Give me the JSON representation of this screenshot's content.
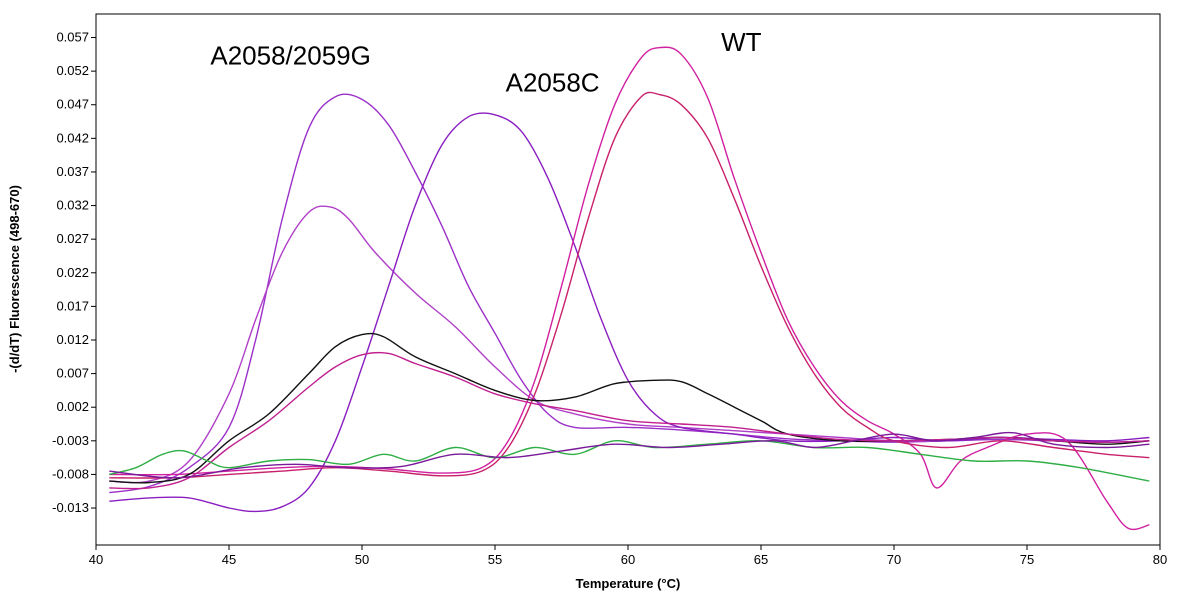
{
  "chart_data": {
    "type": "line",
    "title": "",
    "xlabel": "Temperature (°C)",
    "ylabel": "-(d/dT) Fluorescence (498-670)",
    "xlim": [
      40,
      80
    ],
    "ylim": [
      -0.0185,
      0.0605
    ],
    "x_ticks": [
      "40",
      "45",
      "50",
      "55",
      "60",
      "65",
      "70",
      "75",
      "80"
    ],
    "y_ticks": [
      "0.057",
      "0.052",
      "0.047",
      "0.042",
      "0.037",
      "0.032",
      "0.027",
      "0.022",
      "0.017",
      "0.012",
      "0.007",
      "0.002",
      "-0.003",
      "-0.008",
      "-0.013"
    ],
    "grid": false,
    "annotations": [
      {
        "text": "A2058/2059G",
        "x": 44.3,
        "y": 0.053
      },
      {
        "text": "A2058C",
        "x": 55.4,
        "y": 0.049
      },
      {
        "text": "WT",
        "x": 63.5,
        "y": 0.055
      }
    ],
    "series": [
      {
        "color": "#9b30c8",
        "points": [
          [
            40.5,
            -0.0107
          ],
          [
            42,
            -0.0098
          ],
          [
            43.5,
            -0.007
          ],
          [
            45,
            -0.001
          ],
          [
            46,
            0.012
          ],
          [
            47,
            0.03
          ],
          [
            48,
            0.0435
          ],
          [
            49,
            0.0482
          ],
          [
            50,
            0.0478
          ],
          [
            51,
            0.044
          ],
          [
            52,
            0.037
          ],
          [
            53,
            0.029
          ],
          [
            54,
            0.02
          ],
          [
            55,
            0.013
          ],
          [
            56,
            0.006
          ],
          [
            57,
            0.001
          ],
          [
            58,
            -0.001
          ],
          [
            60,
            -0.001
          ],
          [
            62,
            -0.0014
          ],
          [
            64,
            -0.002
          ],
          [
            66,
            -0.0027
          ],
          [
            68,
            -0.003
          ],
          [
            70,
            -0.0032
          ],
          [
            72,
            -0.003
          ],
          [
            74,
            -0.0028
          ],
          [
            76,
            -0.003
          ],
          [
            78,
            -0.0032
          ],
          [
            79.6,
            -0.003
          ]
        ]
      },
      {
        "color": "#b040c8",
        "points": [
          [
            40.5,
            -0.009
          ],
          [
            42,
            -0.009
          ],
          [
            43.5,
            -0.006
          ],
          [
            45,
            0.004
          ],
          [
            46,
            0.015
          ],
          [
            47,
            0.025
          ],
          [
            48,
            0.031
          ],
          [
            48.8,
            0.0318
          ],
          [
            49.5,
            0.03
          ],
          [
            50.5,
            0.025
          ],
          [
            52,
            0.019
          ],
          [
            53.5,
            0.014
          ],
          [
            55,
            0.008
          ],
          [
            56.5,
            0.003
          ],
          [
            58,
            0.001
          ],
          [
            60,
            -0.0005
          ],
          [
            62,
            -0.001
          ],
          [
            64,
            -0.0015
          ],
          [
            66,
            -0.002
          ],
          [
            68,
            -0.0025
          ],
          [
            70,
            -0.003
          ],
          [
            72,
            -0.003
          ],
          [
            74,
            -0.0025
          ],
          [
            76,
            -0.003
          ],
          [
            78,
            -0.0032
          ],
          [
            79.6,
            -0.003
          ]
        ]
      },
      {
        "color": "#8a1ec0",
        "points": [
          [
            40.5,
            -0.012
          ],
          [
            42,
            -0.0115
          ],
          [
            43.5,
            -0.0115
          ],
          [
            45,
            -0.013
          ],
          [
            46,
            -0.0135
          ],
          [
            47,
            -0.0128
          ],
          [
            48,
            -0.01
          ],
          [
            49,
            -0.003
          ],
          [
            50,
            0.008
          ],
          [
            51,
            0.02
          ],
          [
            52,
            0.032
          ],
          [
            53,
            0.041
          ],
          [
            54,
            0.0452
          ],
          [
            55,
            0.0455
          ],
          [
            56,
            0.043
          ],
          [
            57,
            0.036
          ],
          [
            58,
            0.026
          ],
          [
            59,
            0.015
          ],
          [
            60,
            0.006
          ],
          [
            61,
            0.001
          ],
          [
            62,
            -0.001
          ],
          [
            64,
            -0.002
          ],
          [
            66,
            -0.003
          ],
          [
            68,
            -0.003
          ],
          [
            70,
            -0.0025
          ],
          [
            72,
            -0.003
          ],
          [
            74,
            -0.0025
          ],
          [
            76,
            -0.0028
          ],
          [
            78,
            -0.003
          ],
          [
            79.6,
            -0.0025
          ]
        ]
      },
      {
        "color": "#d020a0",
        "points": [
          [
            40.5,
            -0.008
          ],
          [
            43,
            -0.008
          ],
          [
            45,
            -0.0075
          ],
          [
            47,
            -0.007
          ],
          [
            49,
            -0.0068
          ],
          [
            51,
            -0.0072
          ],
          [
            53,
            -0.0078
          ],
          [
            54.5,
            -0.007
          ],
          [
            55.5,
            -0.003
          ],
          [
            56.5,
            0.006
          ],
          [
            57.5,
            0.02
          ],
          [
            58.5,
            0.035
          ],
          [
            59.5,
            0.047
          ],
          [
            60.5,
            0.054
          ],
          [
            61.2,
            0.0555
          ],
          [
            62,
            0.0545
          ],
          [
            63,
            0.048
          ],
          [
            64,
            0.036
          ],
          [
            65,
            0.025
          ],
          [
            66,
            0.015
          ],
          [
            67,
            0.008
          ],
          [
            68,
            0.003
          ],
          [
            69,
            0.0
          ],
          [
            70,
            -0.002
          ],
          [
            71,
            -0.005
          ],
          [
            71.6,
            -0.01
          ],
          [
            72.5,
            -0.006
          ],
          [
            73.5,
            -0.004
          ],
          [
            75,
            -0.002
          ],
          [
            76.5,
            -0.003
          ],
          [
            78,
            -0.012
          ],
          [
            78.8,
            -0.016
          ],
          [
            79.6,
            -0.0155
          ]
        ]
      },
      {
        "color": "#c8206a",
        "points": [
          [
            40.5,
            -0.0085
          ],
          [
            43,
            -0.0085
          ],
          [
            45,
            -0.008
          ],
          [
            47,
            -0.0075
          ],
          [
            49,
            -0.007
          ],
          [
            51,
            -0.0075
          ],
          [
            53,
            -0.0082
          ],
          [
            54.5,
            -0.0075
          ],
          [
            55.5,
            -0.004
          ],
          [
            56.5,
            0.004
          ],
          [
            57.5,
            0.016
          ],
          [
            58.5,
            0.03
          ],
          [
            59.5,
            0.042
          ],
          [
            60.5,
            0.0482
          ],
          [
            61.2,
            0.0485
          ],
          [
            62,
            0.047
          ],
          [
            63,
            0.042
          ],
          [
            64,
            0.033
          ],
          [
            65,
            0.023
          ],
          [
            66,
            0.014
          ],
          [
            67,
            0.007
          ],
          [
            68,
            0.002
          ],
          [
            69,
            -0.001
          ],
          [
            70,
            -0.003
          ],
          [
            72,
            -0.004
          ],
          [
            74,
            -0.003
          ],
          [
            76,
            -0.004
          ],
          [
            78,
            -0.005
          ],
          [
            79.6,
            -0.0055
          ]
        ]
      },
      {
        "color": "#111111",
        "points": [
          [
            40.5,
            -0.009
          ],
          [
            42,
            -0.0092
          ],
          [
            43.5,
            -0.008
          ],
          [
            45,
            -0.003
          ],
          [
            46.5,
            0.001
          ],
          [
            48,
            0.007
          ],
          [
            49,
            0.011
          ],
          [
            50,
            0.0128
          ],
          [
            50.8,
            0.0125
          ],
          [
            52,
            0.0095
          ],
          [
            53.5,
            0.007
          ],
          [
            55,
            0.0045
          ],
          [
            56.5,
            0.003
          ],
          [
            58,
            0.0035
          ],
          [
            59.5,
            0.0055
          ],
          [
            61,
            0.006
          ],
          [
            62,
            0.0058
          ],
          [
            63,
            0.004
          ],
          [
            64,
            0.002
          ],
          [
            65,
            0.0
          ],
          [
            66,
            -0.002
          ],
          [
            68,
            -0.003
          ],
          [
            70,
            -0.003
          ],
          [
            72,
            -0.0028
          ],
          [
            74,
            -0.0025
          ],
          [
            76,
            -0.003
          ],
          [
            78,
            -0.0035
          ],
          [
            79.6,
            -0.003
          ]
        ]
      },
      {
        "color": "#c02090",
        "points": [
          [
            40.5,
            -0.01
          ],
          [
            42,
            -0.01
          ],
          [
            43.5,
            -0.0085
          ],
          [
            45,
            -0.004
          ],
          [
            46.5,
            0.0
          ],
          [
            48,
            0.005
          ],
          [
            49,
            0.008
          ],
          [
            50,
            0.0098
          ],
          [
            51,
            0.01
          ],
          [
            52,
            0.0085
          ],
          [
            53.5,
            0.0065
          ],
          [
            55,
            0.004
          ],
          [
            56.5,
            0.0025
          ],
          [
            58,
            0.0015
          ],
          [
            60,
            0.0
          ],
          [
            62,
            -0.0005
          ],
          [
            64,
            -0.001
          ],
          [
            66,
            -0.002
          ],
          [
            68,
            -0.0028
          ],
          [
            70,
            -0.003
          ],
          [
            72,
            -0.0028
          ],
          [
            74,
            -0.0025
          ],
          [
            76,
            -0.003
          ],
          [
            78,
            -0.0032
          ],
          [
            79.6,
            -0.003
          ]
        ]
      },
      {
        "color": "#2fae45",
        "points": [
          [
            40.5,
            -0.008
          ],
          [
            41.5,
            -0.007
          ],
          [
            42.5,
            -0.005
          ],
          [
            43.3,
            -0.0045
          ],
          [
            44.2,
            -0.006
          ],
          [
            45,
            -0.007
          ],
          [
            46.5,
            -0.006
          ],
          [
            48,
            -0.0058
          ],
          [
            49.5,
            -0.0065
          ],
          [
            50.8,
            -0.005
          ],
          [
            52,
            -0.006
          ],
          [
            53.5,
            -0.004
          ],
          [
            55,
            -0.0055
          ],
          [
            56.5,
            -0.004
          ],
          [
            58,
            -0.005
          ],
          [
            59.5,
            -0.003
          ],
          [
            61,
            -0.004
          ],
          [
            63,
            -0.0035
          ],
          [
            65,
            -0.003
          ],
          [
            67,
            -0.004
          ],
          [
            69,
            -0.004
          ],
          [
            71,
            -0.005
          ],
          [
            73,
            -0.006
          ],
          [
            75,
            -0.006
          ],
          [
            77,
            -0.007
          ],
          [
            79.6,
            -0.009
          ]
        ]
      },
      {
        "color": "#7a1a9a",
        "points": [
          [
            40.5,
            -0.0075
          ],
          [
            43,
            -0.0085
          ],
          [
            45.5,
            -0.007
          ],
          [
            47.5,
            -0.0065
          ],
          [
            49.5,
            -0.007
          ],
          [
            51.5,
            -0.0068
          ],
          [
            53.5,
            -0.005
          ],
          [
            55.5,
            -0.0055
          ],
          [
            57.5,
            -0.0045
          ],
          [
            59.5,
            -0.0035
          ],
          [
            61.5,
            -0.004
          ],
          [
            63.5,
            -0.0035
          ],
          [
            65.5,
            -0.003
          ],
          [
            67,
            -0.004
          ],
          [
            68.5,
            -0.003
          ],
          [
            70,
            -0.002
          ],
          [
            71.5,
            -0.003
          ],
          [
            73,
            -0.0025
          ],
          [
            74.5,
            -0.0018
          ],
          [
            76,
            -0.0035
          ],
          [
            78,
            -0.004
          ],
          [
            79.6,
            -0.0035
          ]
        ]
      }
    ]
  }
}
